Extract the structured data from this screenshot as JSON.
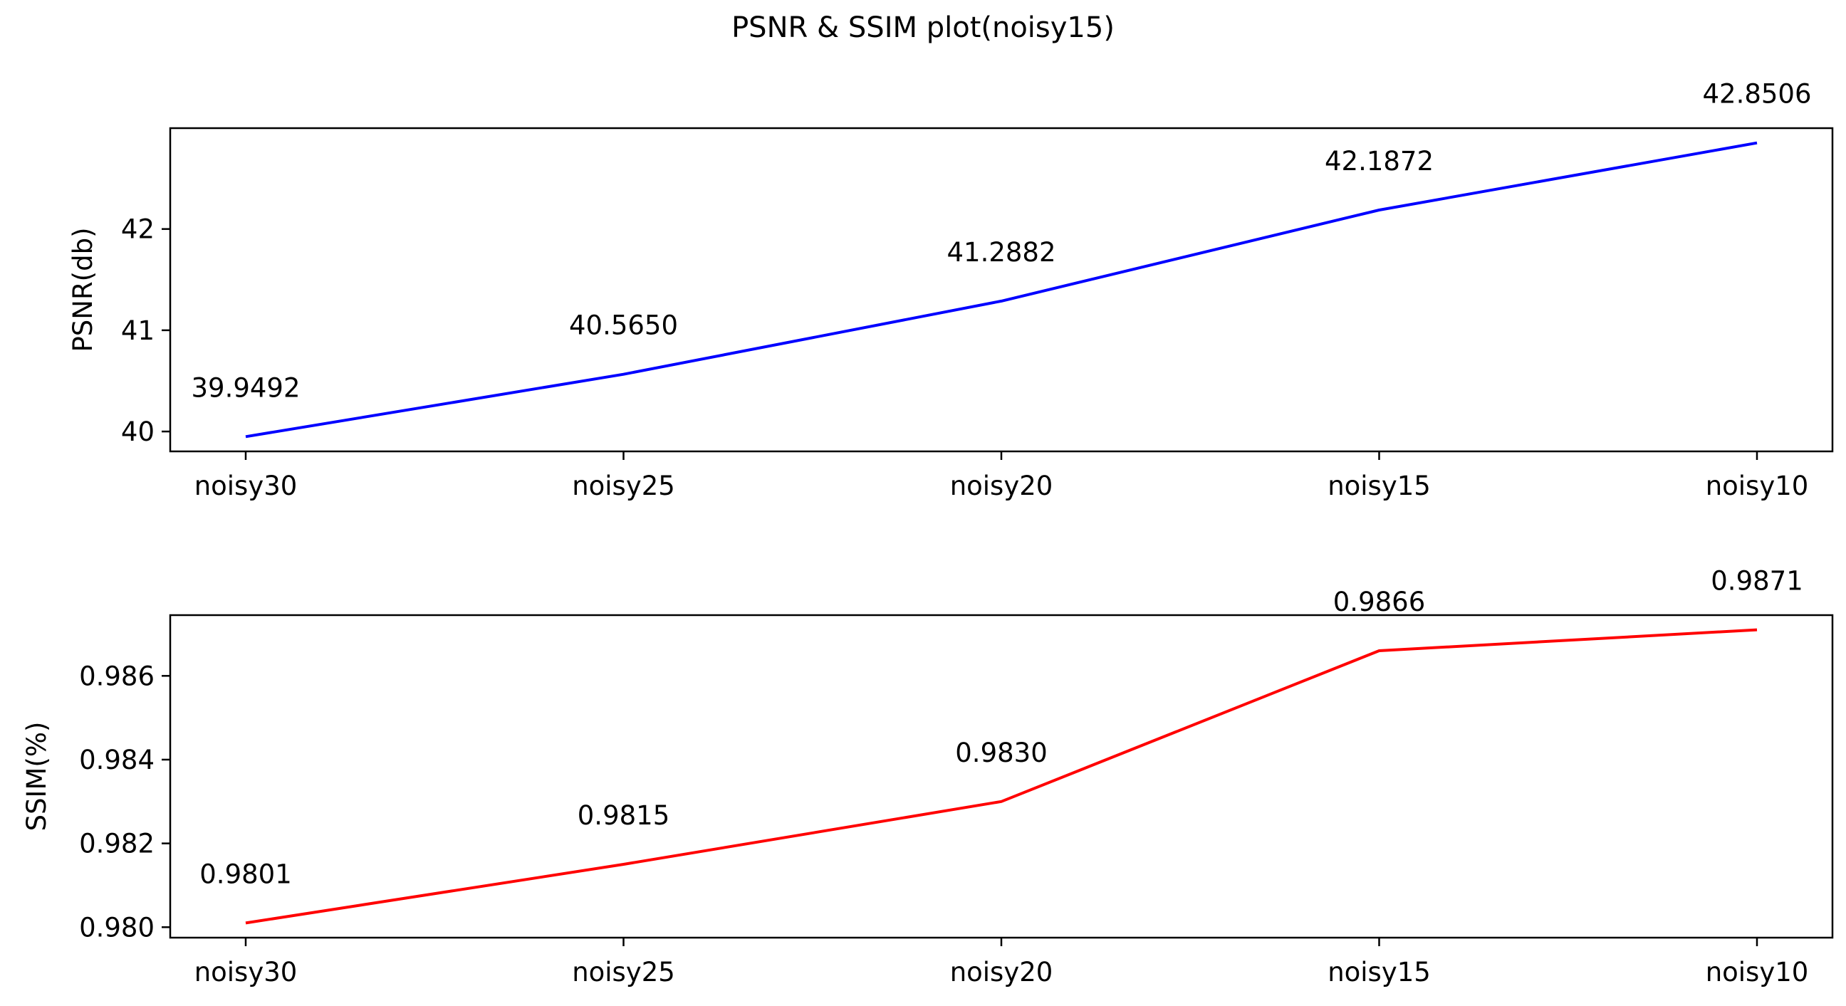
{
  "chart_data": {
    "title": "PSNR & SSIM plot(noisy15)",
    "subplots": [
      {
        "type": "line",
        "categories": [
          "noisy30",
          "noisy25",
          "noisy20",
          "noisy15",
          "noisy10"
        ],
        "values": [
          39.9492,
          40.565,
          41.2882,
          42.1872,
          42.8506
        ],
        "data_labels": [
          "39.9492",
          "40.5650",
          "41.2882",
          "42.1872",
          "42.8506"
        ],
        "xlabel": "",
        "ylabel": "PSNR(db)",
        "ylim": [
          39.8036,
          42.9962
        ],
        "yticks": [
          40,
          41,
          42
        ],
        "ytick_labels": [
          "40",
          "41",
          "42"
        ],
        "color": "#0000ff",
        "grid": false
      },
      {
        "type": "line",
        "categories": [
          "noisy30",
          "noisy25",
          "noisy20",
          "noisy15",
          "noisy10"
        ],
        "values": [
          0.9801,
          0.9815,
          0.983,
          0.9866,
          0.9871
        ],
        "data_labels": [
          "0.9801",
          "0.9815",
          "0.9830",
          "0.9866",
          "0.9871"
        ],
        "xlabel": "",
        "ylabel": "SSIM(%)",
        "ylim": [
          0.97975,
          0.98745
        ],
        "yticks": [
          0.98,
          0.982,
          0.984,
          0.986
        ],
        "ytick_labels": [
          "0.980",
          "0.982",
          "0.984",
          "0.986"
        ],
        "color": "#ff0000",
        "grid": false
      }
    ]
  }
}
